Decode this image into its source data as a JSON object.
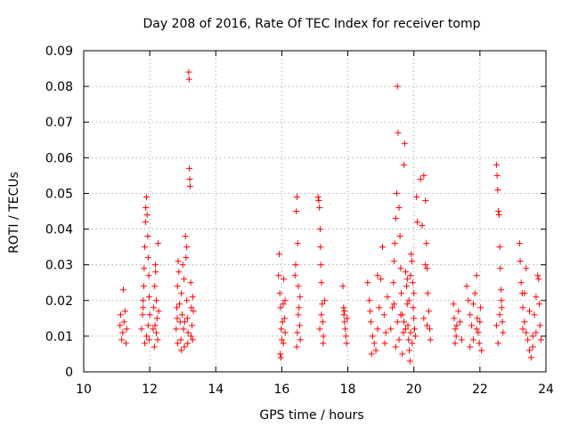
{
  "chart_data": {
    "type": "scatter",
    "title": "Day 208 of 2016, Rate Of TEC Index for receiver tomp",
    "xlabel": "GPS time / hours",
    "ylabel": "ROTI / TECUs",
    "xlim": [
      10,
      24
    ],
    "ylim": [
      0,
      0.09
    ],
    "xticks": [
      10,
      12,
      14,
      16,
      18,
      20,
      22,
      24
    ],
    "xtick_labels": [
      "10",
      "12",
      "14",
      "16",
      "18",
      "20",
      "22",
      "24"
    ],
    "yticks": [
      0,
      0.01,
      0.02,
      0.03,
      0.04,
      0.05,
      0.06,
      0.07,
      0.08,
      0.09
    ],
    "ytick_labels": [
      "0",
      "0.01",
      "0.02",
      "0.03",
      "0.04",
      "0.05",
      "0.06",
      "0.07",
      "0.08",
      "0.09"
    ],
    "grid": true,
    "marker": "+",
    "color": "#ff0000",
    "series": [
      {
        "name": "ROTI",
        "points": [
          [
            11.1,
            0.013
          ],
          [
            11.12,
            0.016
          ],
          [
            11.15,
            0.009
          ],
          [
            11.18,
            0.011
          ],
          [
            11.2,
            0.023
          ],
          [
            11.22,
            0.014
          ],
          [
            11.25,
            0.017
          ],
          [
            11.28,
            0.008
          ],
          [
            11.3,
            0.012
          ],
          [
            11.75,
            0.012
          ],
          [
            11.78,
            0.016
          ],
          [
            11.8,
            0.02
          ],
          [
            11.82,
            0.024
          ],
          [
            11.83,
            0.029
          ],
          [
            11.85,
            0.035
          ],
          [
            11.87,
            0.042
          ],
          [
            11.88,
            0.046
          ],
          [
            11.9,
            0.049
          ],
          [
            11.92,
            0.044
          ],
          [
            11.94,
            0.038
          ],
          [
            11.95,
            0.032
          ],
          [
            11.97,
            0.027
          ],
          [
            11.98,
            0.021
          ],
          [
            12.0,
            0.016
          ],
          [
            11.9,
            0.01
          ],
          [
            11.85,
            0.008
          ],
          [
            11.95,
            0.013
          ],
          [
            11.8,
            0.018
          ],
          [
            11.98,
            0.009
          ],
          [
            12.1,
            0.012
          ],
          [
            12.12,
            0.018
          ],
          [
            12.15,
            0.024
          ],
          [
            12.17,
            0.03
          ],
          [
            12.18,
            0.028
          ],
          [
            12.2,
            0.02
          ],
          [
            12.22,
            0.015
          ],
          [
            12.24,
            0.009
          ],
          [
            12.14,
            0.007
          ],
          [
            12.2,
            0.011
          ],
          [
            12.25,
            0.036
          ],
          [
            12.27,
            0.017
          ],
          [
            12.16,
            0.013
          ],
          [
            12.8,
            0.012
          ],
          [
            12.82,
            0.018
          ],
          [
            12.84,
            0.024
          ],
          [
            12.86,
            0.031
          ],
          [
            12.88,
            0.028
          ],
          [
            12.9,
            0.019
          ],
          [
            12.92,
            0.014
          ],
          [
            12.94,
            0.009
          ],
          [
            12.96,
            0.022
          ],
          [
            12.98,
            0.016
          ],
          [
            13.0,
            0.03
          ],
          [
            13.02,
            0.012
          ],
          [
            13.04,
            0.026
          ],
          [
            13.06,
            0.014
          ],
          [
            13.08,
            0.038
          ],
          [
            13.1,
            0.032
          ],
          [
            13.12,
            0.02
          ],
          [
            13.14,
            0.015
          ],
          [
            13.16,
            0.011
          ],
          [
            13.18,
            0.084
          ],
          [
            13.19,
            0.082
          ],
          [
            13.2,
            0.057
          ],
          [
            13.21,
            0.054
          ],
          [
            13.22,
            0.052
          ],
          [
            13.24,
            0.025
          ],
          [
            13.26,
            0.018
          ],
          [
            13.28,
            0.013
          ],
          [
            13.3,
            0.009
          ],
          [
            13.32,
            0.017
          ],
          [
            12.85,
            0.008
          ],
          [
            12.95,
            0.006
          ],
          [
            13.05,
            0.007
          ],
          [
            13.15,
            0.008
          ],
          [
            13.25,
            0.01
          ],
          [
            13.3,
            0.021
          ],
          [
            12.83,
            0.015
          ],
          [
            13.12,
            0.035
          ],
          [
            15.9,
            0.027
          ],
          [
            15.92,
            0.033
          ],
          [
            15.94,
            0.022
          ],
          [
            15.96,
            0.018
          ],
          [
            15.98,
            0.012
          ],
          [
            16.0,
            0.009
          ],
          [
            16.02,
            0.014
          ],
          [
            16.04,
            0.019
          ],
          [
            16.06,
            0.026
          ],
          [
            16.08,
            0.015
          ],
          [
            16.1,
            0.011
          ],
          [
            15.95,
            0.005
          ],
          [
            15.97,
            0.004
          ],
          [
            16.05,
            0.008
          ],
          [
            16.1,
            0.02
          ],
          [
            16.4,
            0.027
          ],
          [
            16.42,
            0.03
          ],
          [
            16.44,
            0.045
          ],
          [
            16.46,
            0.049
          ],
          [
            16.48,
            0.036
          ],
          [
            16.5,
            0.024
          ],
          [
            16.52,
            0.018
          ],
          [
            16.54,
            0.013
          ],
          [
            16.56,
            0.009
          ],
          [
            16.45,
            0.007
          ],
          [
            16.5,
            0.016
          ],
          [
            16.55,
            0.021
          ],
          [
            16.47,
            0.011
          ],
          [
            17.1,
            0.049
          ],
          [
            17.12,
            0.048
          ],
          [
            17.14,
            0.046
          ],
          [
            17.16,
            0.04
          ],
          [
            17.18,
            0.03
          ],
          [
            17.2,
            0.025
          ],
          [
            17.22,
            0.019
          ],
          [
            17.24,
            0.014
          ],
          [
            17.26,
            0.01
          ],
          [
            17.15,
            0.012
          ],
          [
            17.2,
            0.016
          ],
          [
            17.25,
            0.008
          ],
          [
            17.3,
            0.02
          ],
          [
            17.17,
            0.035
          ],
          [
            17.85,
            0.024
          ],
          [
            17.87,
            0.018
          ],
          [
            17.88,
            0.016
          ],
          [
            17.9,
            0.014
          ],
          [
            17.92,
            0.012
          ],
          [
            17.94,
            0.01
          ],
          [
            17.96,
            0.008
          ],
          [
            17.98,
            0.015
          ],
          [
            17.9,
            0.017
          ],
          [
            18.6,
            0.025
          ],
          [
            18.65,
            0.02
          ],
          [
            18.7,
            0.014
          ],
          [
            18.75,
            0.01
          ],
          [
            18.8,
            0.008
          ],
          [
            18.85,
            0.006
          ],
          [
            18.9,
            0.012
          ],
          [
            18.95,
            0.018
          ],
          [
            19.0,
            0.026
          ],
          [
            19.05,
            0.035
          ],
          [
            19.1,
            0.016
          ],
          [
            19.15,
            0.011
          ],
          [
            19.2,
            0.021
          ],
          [
            18.68,
            0.017
          ],
          [
            18.72,
            0.005
          ],
          [
            18.9,
            0.027
          ],
          [
            19.12,
            0.008
          ],
          [
            19.3,
            0.012
          ],
          [
            19.35,
            0.018
          ],
          [
            19.38,
            0.025
          ],
          [
            19.4,
            0.031
          ],
          [
            19.42,
            0.036
          ],
          [
            19.45,
            0.043
          ],
          [
            19.48,
            0.05
          ],
          [
            19.5,
            0.08
          ],
          [
            19.52,
            0.067
          ],
          [
            19.55,
            0.046
          ],
          [
            19.58,
            0.038
          ],
          [
            19.6,
            0.029
          ],
          [
            19.62,
            0.022
          ],
          [
            19.65,
            0.016
          ],
          [
            19.68,
            0.011
          ],
          [
            19.7,
            0.058
          ],
          [
            19.72,
            0.064
          ],
          [
            19.75,
            0.028
          ],
          [
            19.78,
            0.024
          ],
          [
            19.8,
            0.019
          ],
          [
            19.82,
            0.013
          ],
          [
            19.84,
            0.009
          ],
          [
            19.86,
            0.006
          ],
          [
            19.88,
            0.003
          ],
          [
            19.9,
            0.027
          ],
          [
            19.92,
            0.033
          ],
          [
            19.94,
            0.031
          ],
          [
            19.96,
            0.025
          ],
          [
            19.98,
            0.018
          ],
          [
            20.0,
            0.015
          ],
          [
            20.02,
            0.012
          ],
          [
            20.05,
            0.01
          ],
          [
            20.08,
            0.049
          ],
          [
            20.1,
            0.042
          ],
          [
            19.45,
            0.007
          ],
          [
            19.55,
            0.009
          ],
          [
            19.65,
            0.005
          ],
          [
            19.75,
            0.012
          ],
          [
            19.85,
            0.02
          ],
          [
            19.95,
            0.008
          ],
          [
            20.0,
            0.022
          ],
          [
            19.6,
            0.016
          ],
          [
            19.7,
            0.014
          ],
          [
            19.8,
            0.026
          ],
          [
            19.9,
            0.011
          ],
          [
            19.4,
            0.019
          ],
          [
            19.5,
            0.014
          ],
          [
            20.2,
            0.054
          ],
          [
            20.25,
            0.041
          ],
          [
            20.3,
            0.055
          ],
          [
            20.35,
            0.048
          ],
          [
            20.38,
            0.036
          ],
          [
            20.4,
            0.029
          ],
          [
            20.42,
            0.022
          ],
          [
            20.45,
            0.017
          ],
          [
            20.48,
            0.012
          ],
          [
            20.5,
            0.009
          ],
          [
            20.3,
            0.015
          ],
          [
            20.4,
            0.013
          ],
          [
            20.35,
            0.03
          ],
          [
            21.2,
            0.019
          ],
          [
            21.22,
            0.015
          ],
          [
            21.25,
            0.012
          ],
          [
            21.28,
            0.01
          ],
          [
            21.3,
            0.013
          ],
          [
            21.35,
            0.017
          ],
          [
            21.4,
            0.014
          ],
          [
            21.45,
            0.009
          ],
          [
            21.25,
            0.008
          ],
          [
            21.6,
            0.024
          ],
          [
            21.65,
            0.02
          ],
          [
            21.7,
            0.016
          ],
          [
            21.75,
            0.013
          ],
          [
            21.8,
            0.019
          ],
          [
            21.85,
            0.022
          ],
          [
            21.9,
            0.027
          ],
          [
            21.92,
            0.015
          ],
          [
            21.95,
            0.011
          ],
          [
            21.98,
            0.008
          ],
          [
            22.0,
            0.014
          ],
          [
            22.02,
            0.018
          ],
          [
            21.7,
            0.007
          ],
          [
            21.8,
            0.009
          ],
          [
            21.9,
            0.012
          ],
          [
            22.05,
            0.006
          ],
          [
            22.5,
            0.058
          ],
          [
            22.52,
            0.055
          ],
          [
            22.54,
            0.051
          ],
          [
            22.56,
            0.045
          ],
          [
            22.58,
            0.044
          ],
          [
            22.6,
            0.035
          ],
          [
            22.62,
            0.029
          ],
          [
            22.64,
            0.023
          ],
          [
            22.66,
            0.018
          ],
          [
            22.68,
            0.014
          ],
          [
            22.7,
            0.011
          ],
          [
            22.55,
            0.008
          ],
          [
            22.6,
            0.016
          ],
          [
            22.65,
            0.02
          ],
          [
            22.5,
            0.013
          ],
          [
            23.2,
            0.036
          ],
          [
            23.22,
            0.031
          ],
          [
            23.25,
            0.025
          ],
          [
            23.28,
            0.022
          ],
          [
            23.3,
            0.018
          ],
          [
            23.35,
            0.014
          ],
          [
            23.4,
            0.011
          ],
          [
            23.45,
            0.009
          ],
          [
            23.5,
            0.006
          ],
          [
            23.55,
            0.004
          ],
          [
            23.6,
            0.01
          ],
          [
            23.65,
            0.016
          ],
          [
            23.7,
            0.021
          ],
          [
            23.75,
            0.027
          ],
          [
            23.78,
            0.026
          ],
          [
            23.8,
            0.019
          ],
          [
            23.82,
            0.013
          ],
          [
            23.85,
            0.009
          ],
          [
            23.4,
            0.029
          ],
          [
            23.5,
            0.017
          ],
          [
            23.6,
            0.007
          ],
          [
            23.3,
            0.012
          ],
          [
            23.7,
            0.011
          ],
          [
            23.35,
            0.022
          ]
        ]
      }
    ]
  }
}
